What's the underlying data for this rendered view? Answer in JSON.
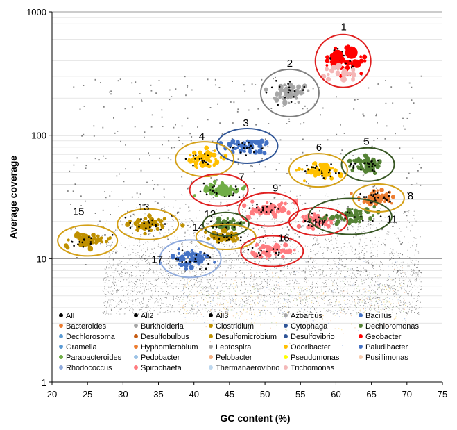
{
  "chart_data": {
    "type": "scatter",
    "title": "",
    "xlabel": "GC content (%)",
    "ylabel": "Average coverage",
    "xlim": [
      20,
      75
    ],
    "ylim": [
      1,
      1000
    ],
    "y_scale": "log",
    "x_ticks": [
      "20",
      "25",
      "30",
      "35",
      "40",
      "45",
      "50",
      "55",
      "60",
      "65",
      "70",
      "75"
    ],
    "y_ticks": [
      "1",
      "10",
      "100",
      "1000"
    ],
    "grid": "horizontal",
    "legend_position": "bottom-inside",
    "legend": [
      {
        "name": "All",
        "color": "#000000"
      },
      {
        "name": "All2",
        "color": "#000000"
      },
      {
        "name": "All3",
        "color": "#000000"
      },
      {
        "name": "Azoarcus",
        "color": "#a6a6a6"
      },
      {
        "name": "Bacillus",
        "color": "#4472c4"
      },
      {
        "name": "Bacteroides",
        "color": "#ed7d31"
      },
      {
        "name": "Burkholderia",
        "color": "#a5a5a5"
      },
      {
        "name": "Clostridium",
        "color": "#bf9000"
      },
      {
        "name": "Cytophaga",
        "color": "#2f5597"
      },
      {
        "name": "Dechloromonas",
        "color": "#548235"
      },
      {
        "name": "Dechlorosoma",
        "color": "#5b9bd5"
      },
      {
        "name": "Desulfobulbus",
        "color": "#c55a11"
      },
      {
        "name": "Desulfomicrobium",
        "color": "#bf9000"
      },
      {
        "name": "Desulfovibrio",
        "color": "#2f5597"
      },
      {
        "name": "Geobacter",
        "color": "#ff0000"
      },
      {
        "name": "Gramella",
        "color": "#5b9bd5"
      },
      {
        "name": "Hyphomicrobium",
        "color": "#ed7d31"
      },
      {
        "name": "Leptospira",
        "color": "#a5a5a5"
      },
      {
        "name": "Odoribacter",
        "color": "#ffc000"
      },
      {
        "name": "Paludibacter",
        "color": "#4472c4"
      },
      {
        "name": "Parabacteroides",
        "color": "#70ad47"
      },
      {
        "name": "Pedobacter",
        "color": "#9dc3e6"
      },
      {
        "name": "Pelobacter",
        "color": "#f4b183"
      },
      {
        "name": "Pseudomonas",
        "color": "#ffff00"
      },
      {
        "name": "Pusillimonas",
        "color": "#f8cbad"
      },
      {
        "name": "Rhodococcus",
        "color": "#8faadc"
      },
      {
        "name": "Spirochaeta",
        "color": "#ff7c80"
      },
      {
        "name": "Thermanaerovibrio",
        "color": "#bdd7ee"
      },
      {
        "name": "Trichomonas",
        "color": "#f4b8b8"
      }
    ],
    "clusters": [
      {
        "label": "1",
        "gc": 61,
        "coverage": 400,
        "color": "#ff0000",
        "circle": "#e02020"
      },
      {
        "label": "2",
        "gc": 53.5,
        "coverage": 220,
        "color": "#a6a6a6",
        "circle": "#808080"
      },
      {
        "label": "3",
        "gc": 47.5,
        "coverage": 82,
        "color": "#4472c4",
        "circle": "#2f5597"
      },
      {
        "label": "4",
        "gc": 41.5,
        "coverage": 64,
        "color": "#ffc000",
        "circle": "#d4a017"
      },
      {
        "label": "5",
        "gc": 64.5,
        "coverage": 58,
        "color": "#548235",
        "circle": "#375623"
      },
      {
        "label": "6",
        "gc": 57.5,
        "coverage": 52,
        "color": "#ffc000",
        "circle": "#d4a017"
      },
      {
        "label": "7",
        "gc": 43.5,
        "coverage": 36,
        "color": "#70ad47",
        "circle": "#e02020"
      },
      {
        "label": "8",
        "gc": 66,
        "coverage": 31,
        "color": "#ed7d31",
        "circle": "#d4a017"
      },
      {
        "label": "9",
        "gc": 50.5,
        "coverage": 25,
        "color": "#ff7c80",
        "circle": "#e02020"
      },
      {
        "label": "10",
        "gc": 57.5,
        "coverage": 20,
        "color": "#ff7c80",
        "circle": "#e02020"
      },
      {
        "label": "11",
        "gc": 62,
        "coverage": 22,
        "color": "#548235",
        "circle": "#375623"
      },
      {
        "label": "12",
        "gc": 44.5,
        "coverage": 19,
        "color": "#548235",
        "circle": "#375623"
      },
      {
        "label": "13",
        "gc": 33.5,
        "coverage": 19,
        "color": "#bf9000",
        "circle": "#d4a017"
      },
      {
        "label": "14",
        "gc": 44.5,
        "coverage": 15,
        "color": "#bf9000",
        "circle": "#d4a017"
      },
      {
        "label": "15",
        "gc": 25,
        "coverage": 14,
        "color": "#bf9000",
        "circle": "#d4a017"
      },
      {
        "label": "16",
        "gc": 51,
        "coverage": 11.5,
        "color": "#ff7c80",
        "circle": "#e02020"
      },
      {
        "label": "17",
        "gc": 39.5,
        "coverage": 10,
        "color": "#4472c4",
        "circle": "#8faadc"
      }
    ]
  },
  "colors": {
    "axis": "#000000",
    "grid": "#c8c8c8",
    "background_points": "#000000"
  }
}
